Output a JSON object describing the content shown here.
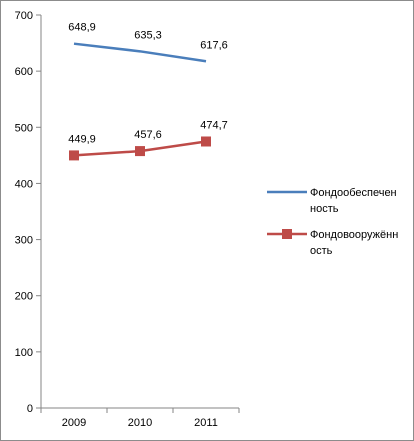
{
  "chart_data": {
    "type": "line",
    "categories": [
      "2009",
      "2010",
      "2011"
    ],
    "ylim": [
      0,
      700
    ],
    "y_ticks": [
      "0",
      "100",
      "200",
      "300",
      "400",
      "500",
      "600",
      "700"
    ],
    "grid": false,
    "legend_position": "right",
    "series": [
      {
        "name_lines": [
          "Фондообеспечен",
          "ность"
        ],
        "values": [
          648.9,
          635.3,
          617.6
        ],
        "labels": [
          "648,9",
          "635,3",
          "617,6"
        ],
        "color": "#4a7ebb",
        "marker": "none"
      },
      {
        "name_lines": [
          "Фондовооружённ",
          "ость"
        ],
        "values": [
          449.9,
          457.6,
          474.7
        ],
        "labels": [
          "449,9",
          "457,6",
          "474,7"
        ],
        "color": "#be4b48",
        "marker": "square"
      }
    ]
  }
}
